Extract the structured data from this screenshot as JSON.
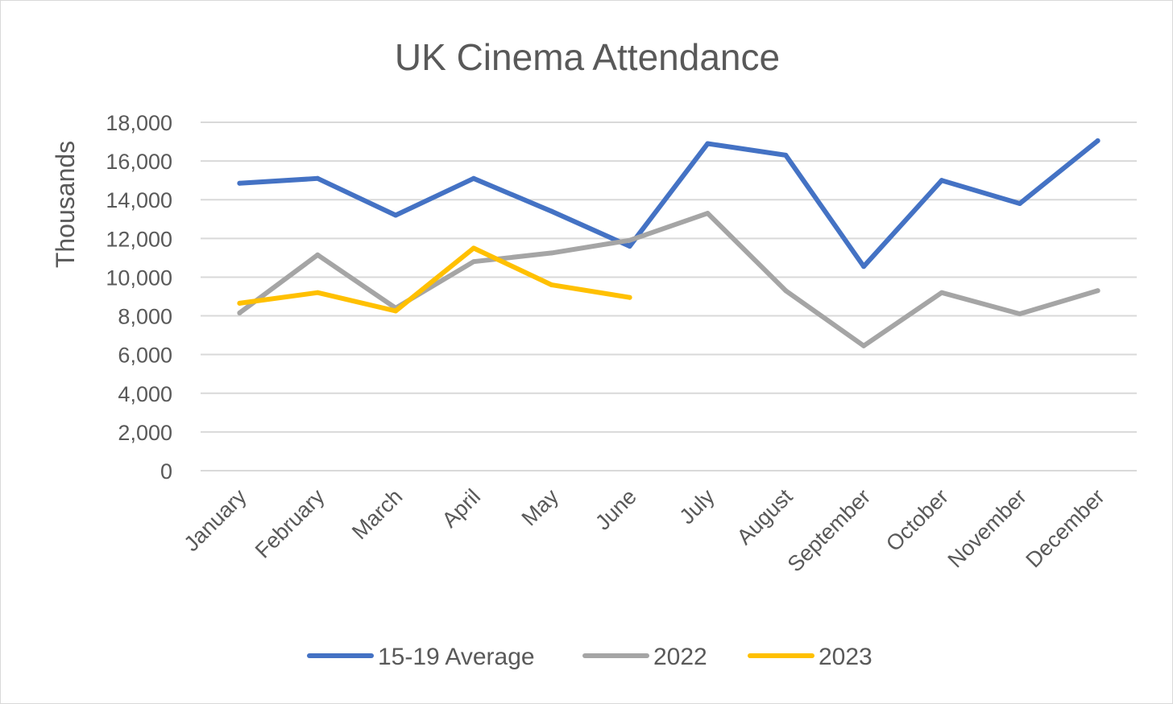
{
  "chart_data": {
    "type": "line",
    "title": "UK Cinema Attendance",
    "xlabel": "",
    "ylabel": "Thousands",
    "ylim": [
      0,
      18000
    ],
    "yticks": [
      0,
      2000,
      4000,
      6000,
      8000,
      10000,
      12000,
      14000,
      16000,
      18000
    ],
    "ytick_labels": [
      "0",
      "2,000",
      "4,000",
      "6,000",
      "8,000",
      "10,000",
      "12,000",
      "14,000",
      "16,000",
      "18,000"
    ],
    "grid": true,
    "legend": "bottom",
    "categories": [
      "January",
      "February",
      "March",
      "April",
      "May",
      "June",
      "July",
      "August",
      "September",
      "October",
      "November",
      "December"
    ],
    "series": [
      {
        "name": "15-19 Average",
        "color": "#4472c4",
        "values": [
          14850,
          15100,
          13200,
          15100,
          13400,
          11600,
          16900,
          16300,
          10550,
          15000,
          13800,
          17050
        ]
      },
      {
        "name": "2022",
        "color": "#a5a5a5",
        "values": [
          8150,
          11150,
          8400,
          10800,
          11250,
          11900,
          13300,
          9300,
          6450,
          9200,
          8100,
          9300
        ]
      },
      {
        "name": "2023",
        "color": "#ffc000",
        "values": [
          8650,
          9200,
          8250,
          11500,
          9600,
          8950,
          null,
          null,
          null,
          null,
          null,
          null
        ]
      }
    ]
  }
}
